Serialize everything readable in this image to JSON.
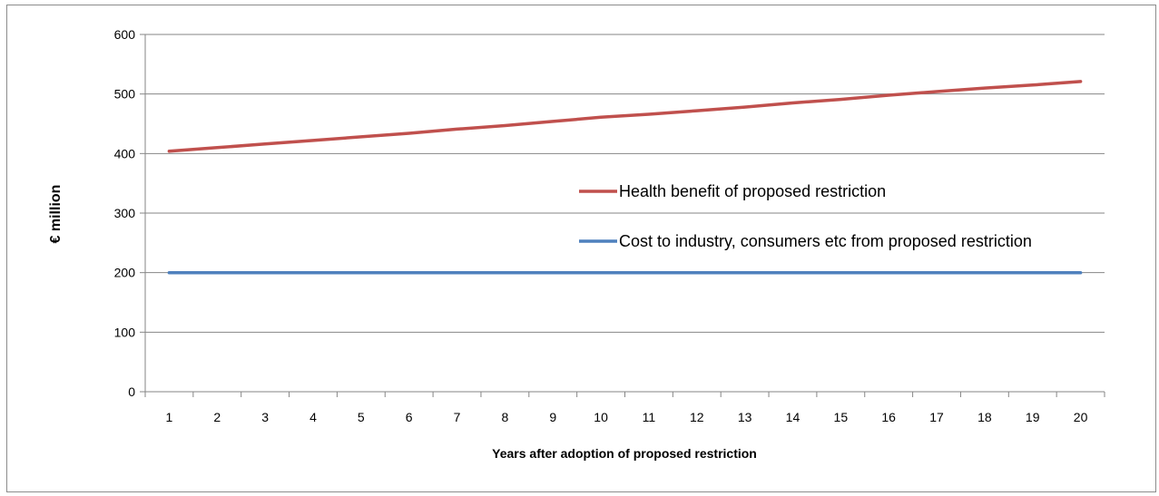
{
  "chart_data": {
    "type": "line",
    "title": "",
    "xlabel": "Years after adoption of proposed restriction",
    "ylabel": "€ million",
    "categories": [
      "1",
      "2",
      "3",
      "4",
      "5",
      "6",
      "7",
      "8",
      "9",
      "10",
      "11",
      "12",
      "13",
      "14",
      "15",
      "16",
      "17",
      "18",
      "19",
      "20"
    ],
    "ylim": [
      0,
      600
    ],
    "yticks": [
      0,
      100,
      200,
      300,
      400,
      500,
      600
    ],
    "grid": "horizontal",
    "legend_position": "inside-right",
    "series": [
      {
        "name": "Health benefit of proposed restriction",
        "color": "#C0504D",
        "values": [
          404,
          410,
          416,
          422,
          428,
          434,
          441,
          447,
          454,
          461,
          466,
          472,
          478,
          485,
          491,
          498,
          504,
          510,
          515,
          521
        ]
      },
      {
        "name": "Cost to industry, consumers etc from proposed restriction",
        "color": "#4F81BD",
        "values": [
          200,
          200,
          200,
          200,
          200,
          200,
          200,
          200,
          200,
          200,
          200,
          200,
          200,
          200,
          200,
          200,
          200,
          200,
          200,
          200
        ]
      }
    ]
  }
}
